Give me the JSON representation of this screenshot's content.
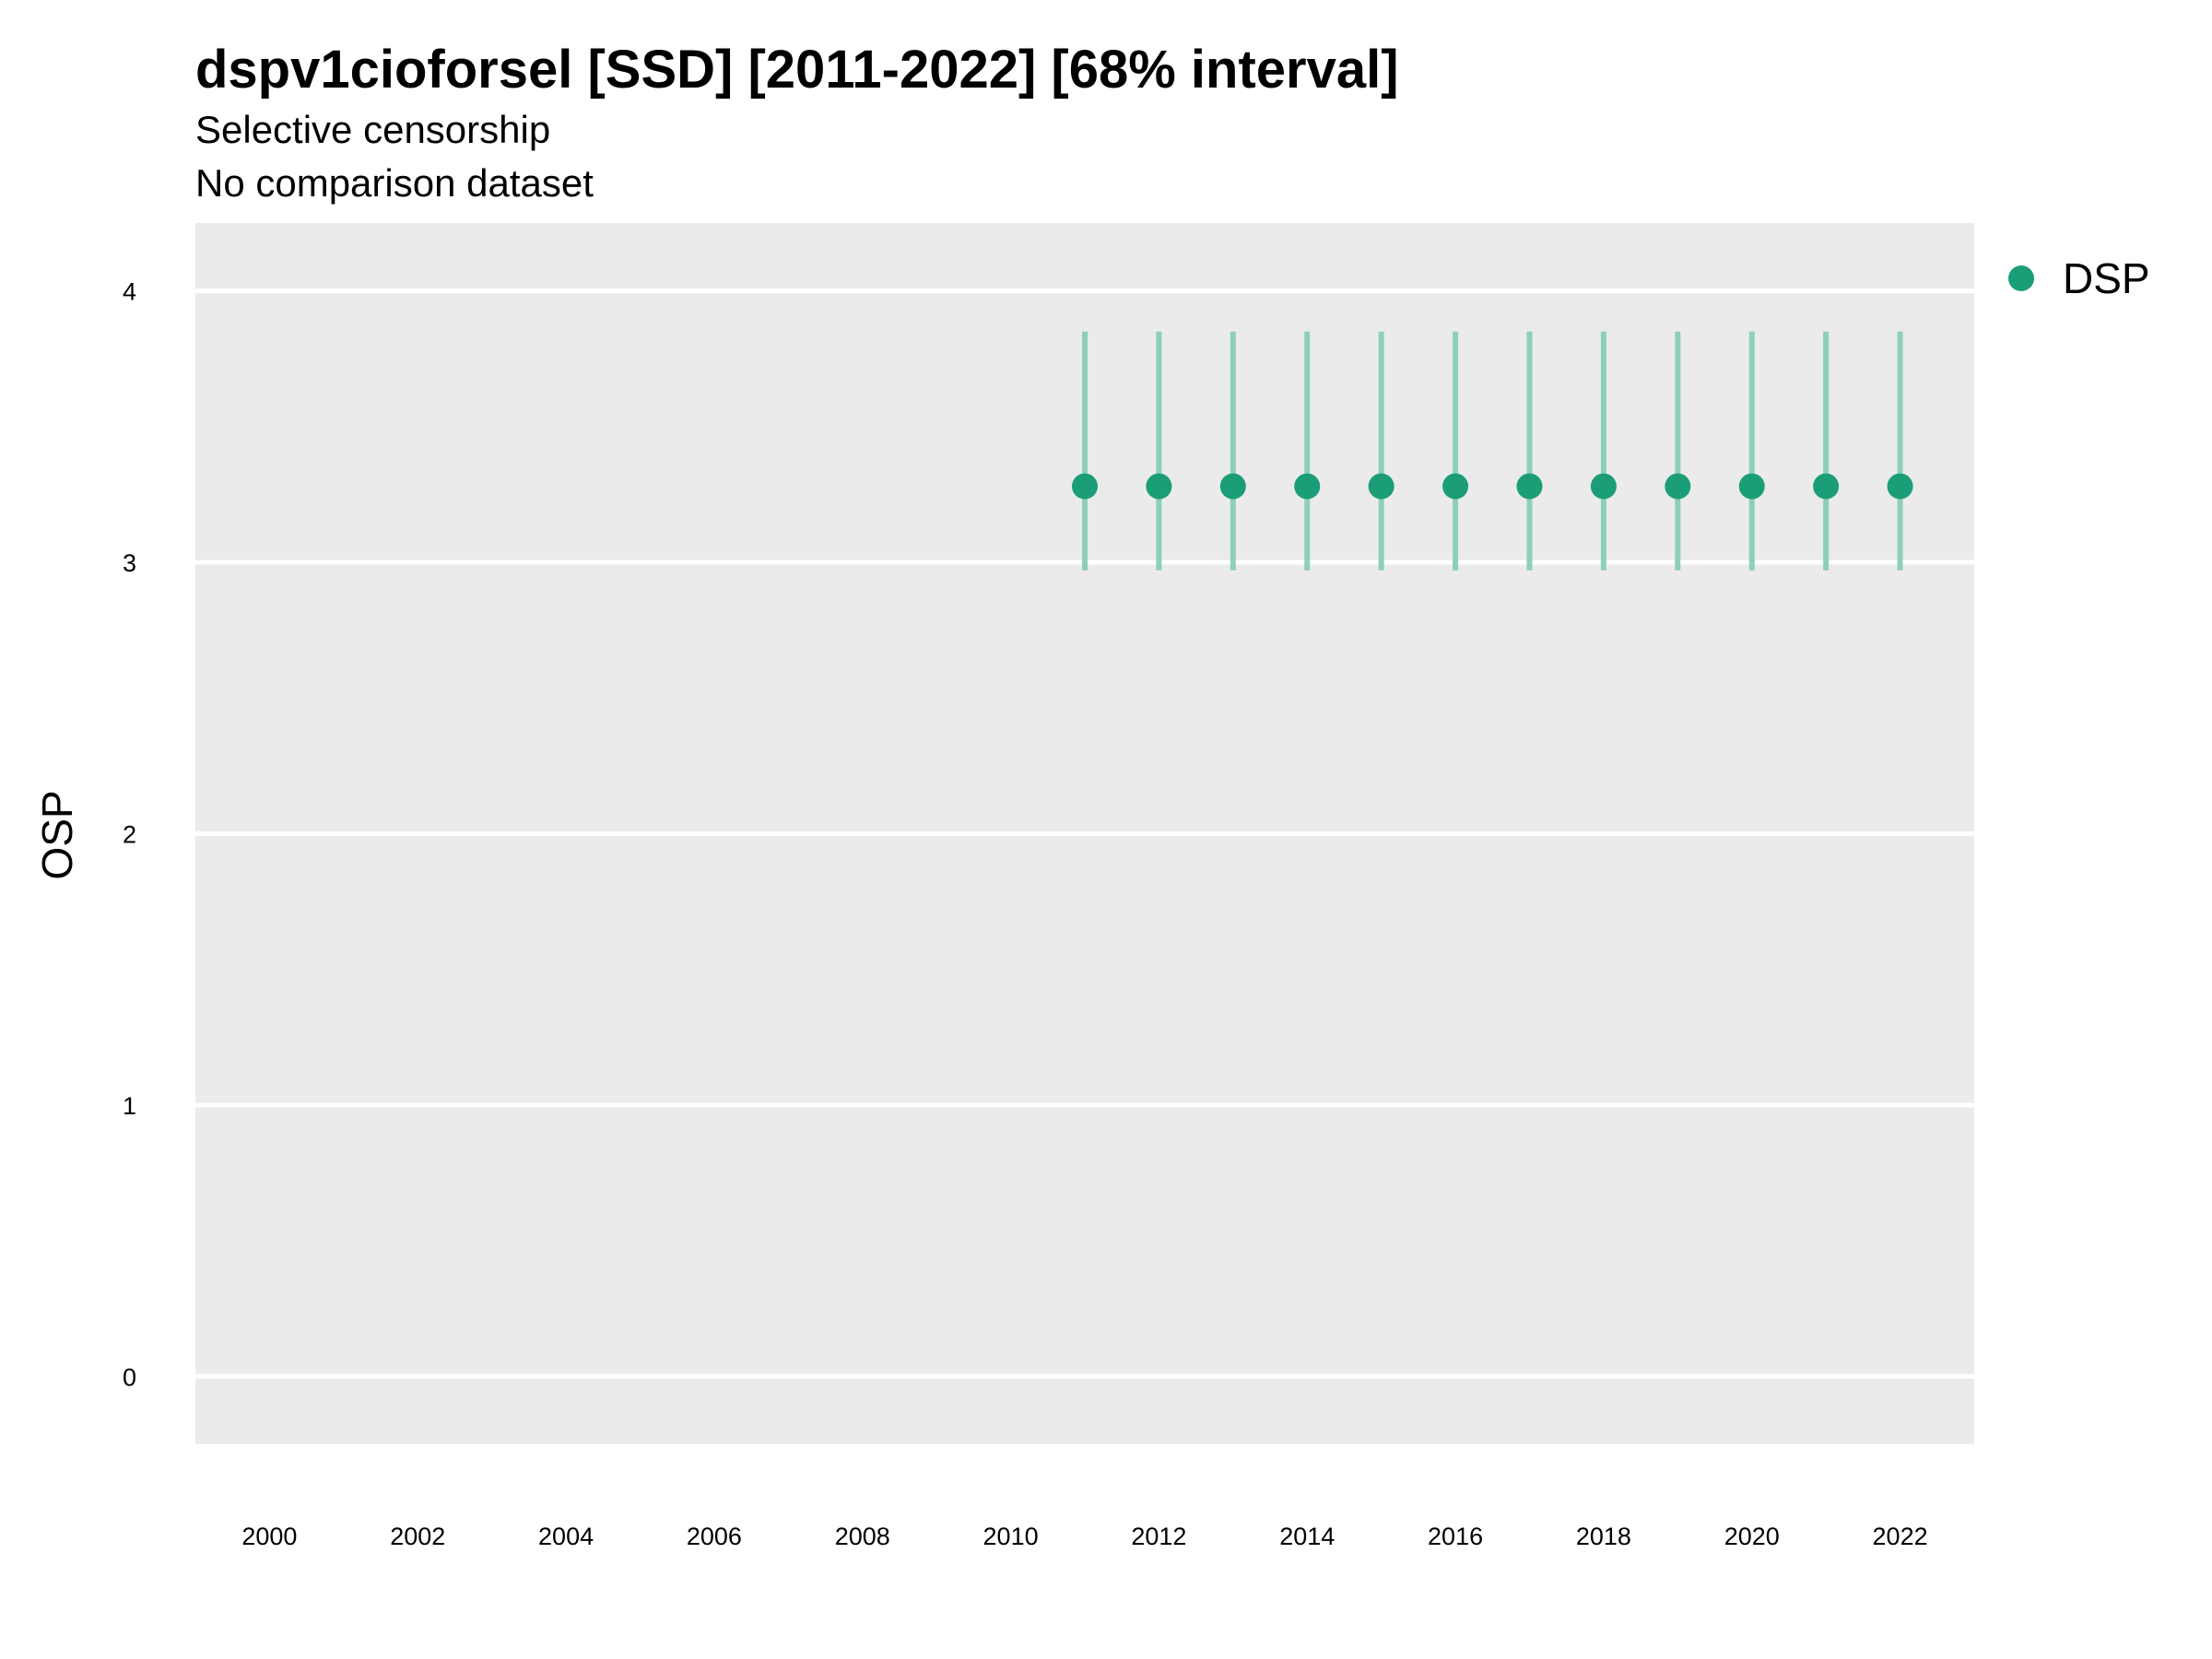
{
  "chart_data": {
    "type": "scatter",
    "title": "dspv1cioforsel [SSD] [2011-2022] [68% interval]",
    "subtitle_lines": [
      "Selective censorship",
      "No comparison dataset"
    ],
    "xlabel": "",
    "ylabel": "OSP",
    "xlim": [
      1999,
      2023
    ],
    "ylim": [
      -0.25,
      4.25
    ],
    "x_ticks": [
      2000,
      2002,
      2004,
      2006,
      2008,
      2010,
      2012,
      2014,
      2016,
      2018,
      2020,
      2022
    ],
    "y_ticks": [
      0,
      1,
      2,
      3,
      4
    ],
    "grid": true,
    "legend_position": "right",
    "series": [
      {
        "name": "DSP",
        "color": "#1b9e77",
        "x": [
          2011,
          2012,
          2013,
          2014,
          2015,
          2016,
          2017,
          2018,
          2019,
          2020,
          2021,
          2022
        ],
        "y": [
          3.28,
          3.28,
          3.28,
          3.28,
          3.28,
          3.28,
          3.28,
          3.28,
          3.28,
          3.28,
          3.28,
          3.28
        ],
        "lower": [
          2.97,
          2.97,
          2.97,
          2.97,
          2.97,
          2.97,
          2.97,
          2.97,
          2.97,
          2.97,
          2.97,
          2.97
        ],
        "upper": [
          3.85,
          3.85,
          3.85,
          3.85,
          3.85,
          3.85,
          3.85,
          3.85,
          3.85,
          3.85,
          3.85,
          3.85
        ]
      }
    ]
  },
  "colors": {
    "panel_background": "#ebebeb",
    "grid": "#ffffff",
    "point": "#1b9e77",
    "errorbar": "#8ecfbb"
  }
}
